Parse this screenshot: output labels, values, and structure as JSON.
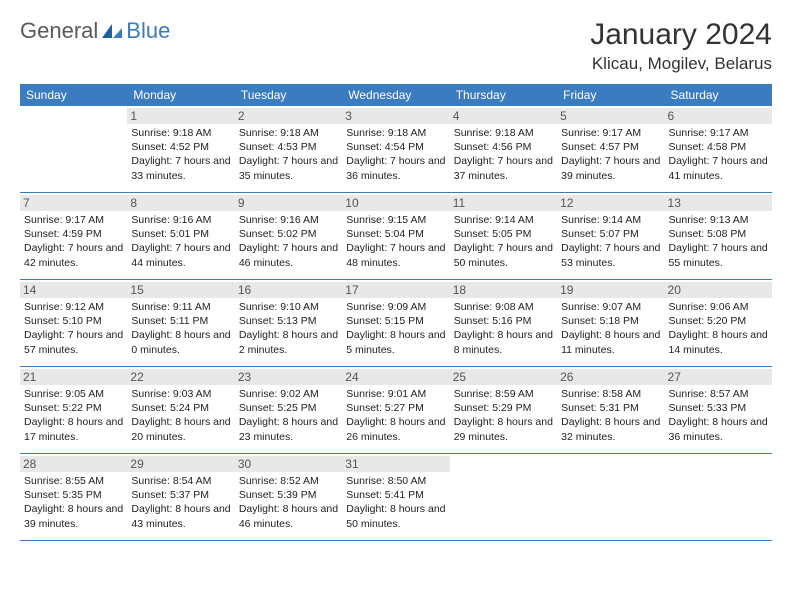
{
  "logo": {
    "part1": "General",
    "part2": "Blue"
  },
  "title": "January 2024",
  "location": "Klicau, Mogilev, Belarus",
  "colors": {
    "header_bg": "#3b7bbf",
    "header_text": "#ffffff",
    "daynum_bg": "#e8e8e8",
    "border": "#3b7bbf",
    "logo_gray": "#5a5a5a",
    "logo_blue": "#3b7bbf"
  },
  "day_headers": [
    "Sunday",
    "Monday",
    "Tuesday",
    "Wednesday",
    "Thursday",
    "Friday",
    "Saturday"
  ],
  "weeks": [
    [
      {
        "n": "",
        "sr": "",
        "ss": "",
        "dl": ""
      },
      {
        "n": "1",
        "sr": "Sunrise: 9:18 AM",
        "ss": "Sunset: 4:52 PM",
        "dl": "Daylight: 7 hours and 33 minutes."
      },
      {
        "n": "2",
        "sr": "Sunrise: 9:18 AM",
        "ss": "Sunset: 4:53 PM",
        "dl": "Daylight: 7 hours and 35 minutes."
      },
      {
        "n": "3",
        "sr": "Sunrise: 9:18 AM",
        "ss": "Sunset: 4:54 PM",
        "dl": "Daylight: 7 hours and 36 minutes."
      },
      {
        "n": "4",
        "sr": "Sunrise: 9:18 AM",
        "ss": "Sunset: 4:56 PM",
        "dl": "Daylight: 7 hours and 37 minutes."
      },
      {
        "n": "5",
        "sr": "Sunrise: 9:17 AM",
        "ss": "Sunset: 4:57 PM",
        "dl": "Daylight: 7 hours and 39 minutes."
      },
      {
        "n": "6",
        "sr": "Sunrise: 9:17 AM",
        "ss": "Sunset: 4:58 PM",
        "dl": "Daylight: 7 hours and 41 minutes."
      }
    ],
    [
      {
        "n": "7",
        "sr": "Sunrise: 9:17 AM",
        "ss": "Sunset: 4:59 PM",
        "dl": "Daylight: 7 hours and 42 minutes."
      },
      {
        "n": "8",
        "sr": "Sunrise: 9:16 AM",
        "ss": "Sunset: 5:01 PM",
        "dl": "Daylight: 7 hours and 44 minutes."
      },
      {
        "n": "9",
        "sr": "Sunrise: 9:16 AM",
        "ss": "Sunset: 5:02 PM",
        "dl": "Daylight: 7 hours and 46 minutes."
      },
      {
        "n": "10",
        "sr": "Sunrise: 9:15 AM",
        "ss": "Sunset: 5:04 PM",
        "dl": "Daylight: 7 hours and 48 minutes."
      },
      {
        "n": "11",
        "sr": "Sunrise: 9:14 AM",
        "ss": "Sunset: 5:05 PM",
        "dl": "Daylight: 7 hours and 50 minutes."
      },
      {
        "n": "12",
        "sr": "Sunrise: 9:14 AM",
        "ss": "Sunset: 5:07 PM",
        "dl": "Daylight: 7 hours and 53 minutes."
      },
      {
        "n": "13",
        "sr": "Sunrise: 9:13 AM",
        "ss": "Sunset: 5:08 PM",
        "dl": "Daylight: 7 hours and 55 minutes."
      }
    ],
    [
      {
        "n": "14",
        "sr": "Sunrise: 9:12 AM",
        "ss": "Sunset: 5:10 PM",
        "dl": "Daylight: 7 hours and 57 minutes."
      },
      {
        "n": "15",
        "sr": "Sunrise: 9:11 AM",
        "ss": "Sunset: 5:11 PM",
        "dl": "Daylight: 8 hours and 0 minutes."
      },
      {
        "n": "16",
        "sr": "Sunrise: 9:10 AM",
        "ss": "Sunset: 5:13 PM",
        "dl": "Daylight: 8 hours and 2 minutes."
      },
      {
        "n": "17",
        "sr": "Sunrise: 9:09 AM",
        "ss": "Sunset: 5:15 PM",
        "dl": "Daylight: 8 hours and 5 minutes."
      },
      {
        "n": "18",
        "sr": "Sunrise: 9:08 AM",
        "ss": "Sunset: 5:16 PM",
        "dl": "Daylight: 8 hours and 8 minutes."
      },
      {
        "n": "19",
        "sr": "Sunrise: 9:07 AM",
        "ss": "Sunset: 5:18 PM",
        "dl": "Daylight: 8 hours and 11 minutes."
      },
      {
        "n": "20",
        "sr": "Sunrise: 9:06 AM",
        "ss": "Sunset: 5:20 PM",
        "dl": "Daylight: 8 hours and 14 minutes."
      }
    ],
    [
      {
        "n": "21",
        "sr": "Sunrise: 9:05 AM",
        "ss": "Sunset: 5:22 PM",
        "dl": "Daylight: 8 hours and 17 minutes."
      },
      {
        "n": "22",
        "sr": "Sunrise: 9:03 AM",
        "ss": "Sunset: 5:24 PM",
        "dl": "Daylight: 8 hours and 20 minutes."
      },
      {
        "n": "23",
        "sr": "Sunrise: 9:02 AM",
        "ss": "Sunset: 5:25 PM",
        "dl": "Daylight: 8 hours and 23 minutes."
      },
      {
        "n": "24",
        "sr": "Sunrise: 9:01 AM",
        "ss": "Sunset: 5:27 PM",
        "dl": "Daylight: 8 hours and 26 minutes."
      },
      {
        "n": "25",
        "sr": "Sunrise: 8:59 AM",
        "ss": "Sunset: 5:29 PM",
        "dl": "Daylight: 8 hours and 29 minutes."
      },
      {
        "n": "26",
        "sr": "Sunrise: 8:58 AM",
        "ss": "Sunset: 5:31 PM",
        "dl": "Daylight: 8 hours and 32 minutes."
      },
      {
        "n": "27",
        "sr": "Sunrise: 8:57 AM",
        "ss": "Sunset: 5:33 PM",
        "dl": "Daylight: 8 hours and 36 minutes."
      }
    ],
    [
      {
        "n": "28",
        "sr": "Sunrise: 8:55 AM",
        "ss": "Sunset: 5:35 PM",
        "dl": "Daylight: 8 hours and 39 minutes."
      },
      {
        "n": "29",
        "sr": "Sunrise: 8:54 AM",
        "ss": "Sunset: 5:37 PM",
        "dl": "Daylight: 8 hours and 43 minutes."
      },
      {
        "n": "30",
        "sr": "Sunrise: 8:52 AM",
        "ss": "Sunset: 5:39 PM",
        "dl": "Daylight: 8 hours and 46 minutes."
      },
      {
        "n": "31",
        "sr": "Sunrise: 8:50 AM",
        "ss": "Sunset: 5:41 PM",
        "dl": "Daylight: 8 hours and 50 minutes."
      },
      {
        "n": "",
        "sr": "",
        "ss": "",
        "dl": ""
      },
      {
        "n": "",
        "sr": "",
        "ss": "",
        "dl": ""
      },
      {
        "n": "",
        "sr": "",
        "ss": "",
        "dl": ""
      }
    ]
  ]
}
